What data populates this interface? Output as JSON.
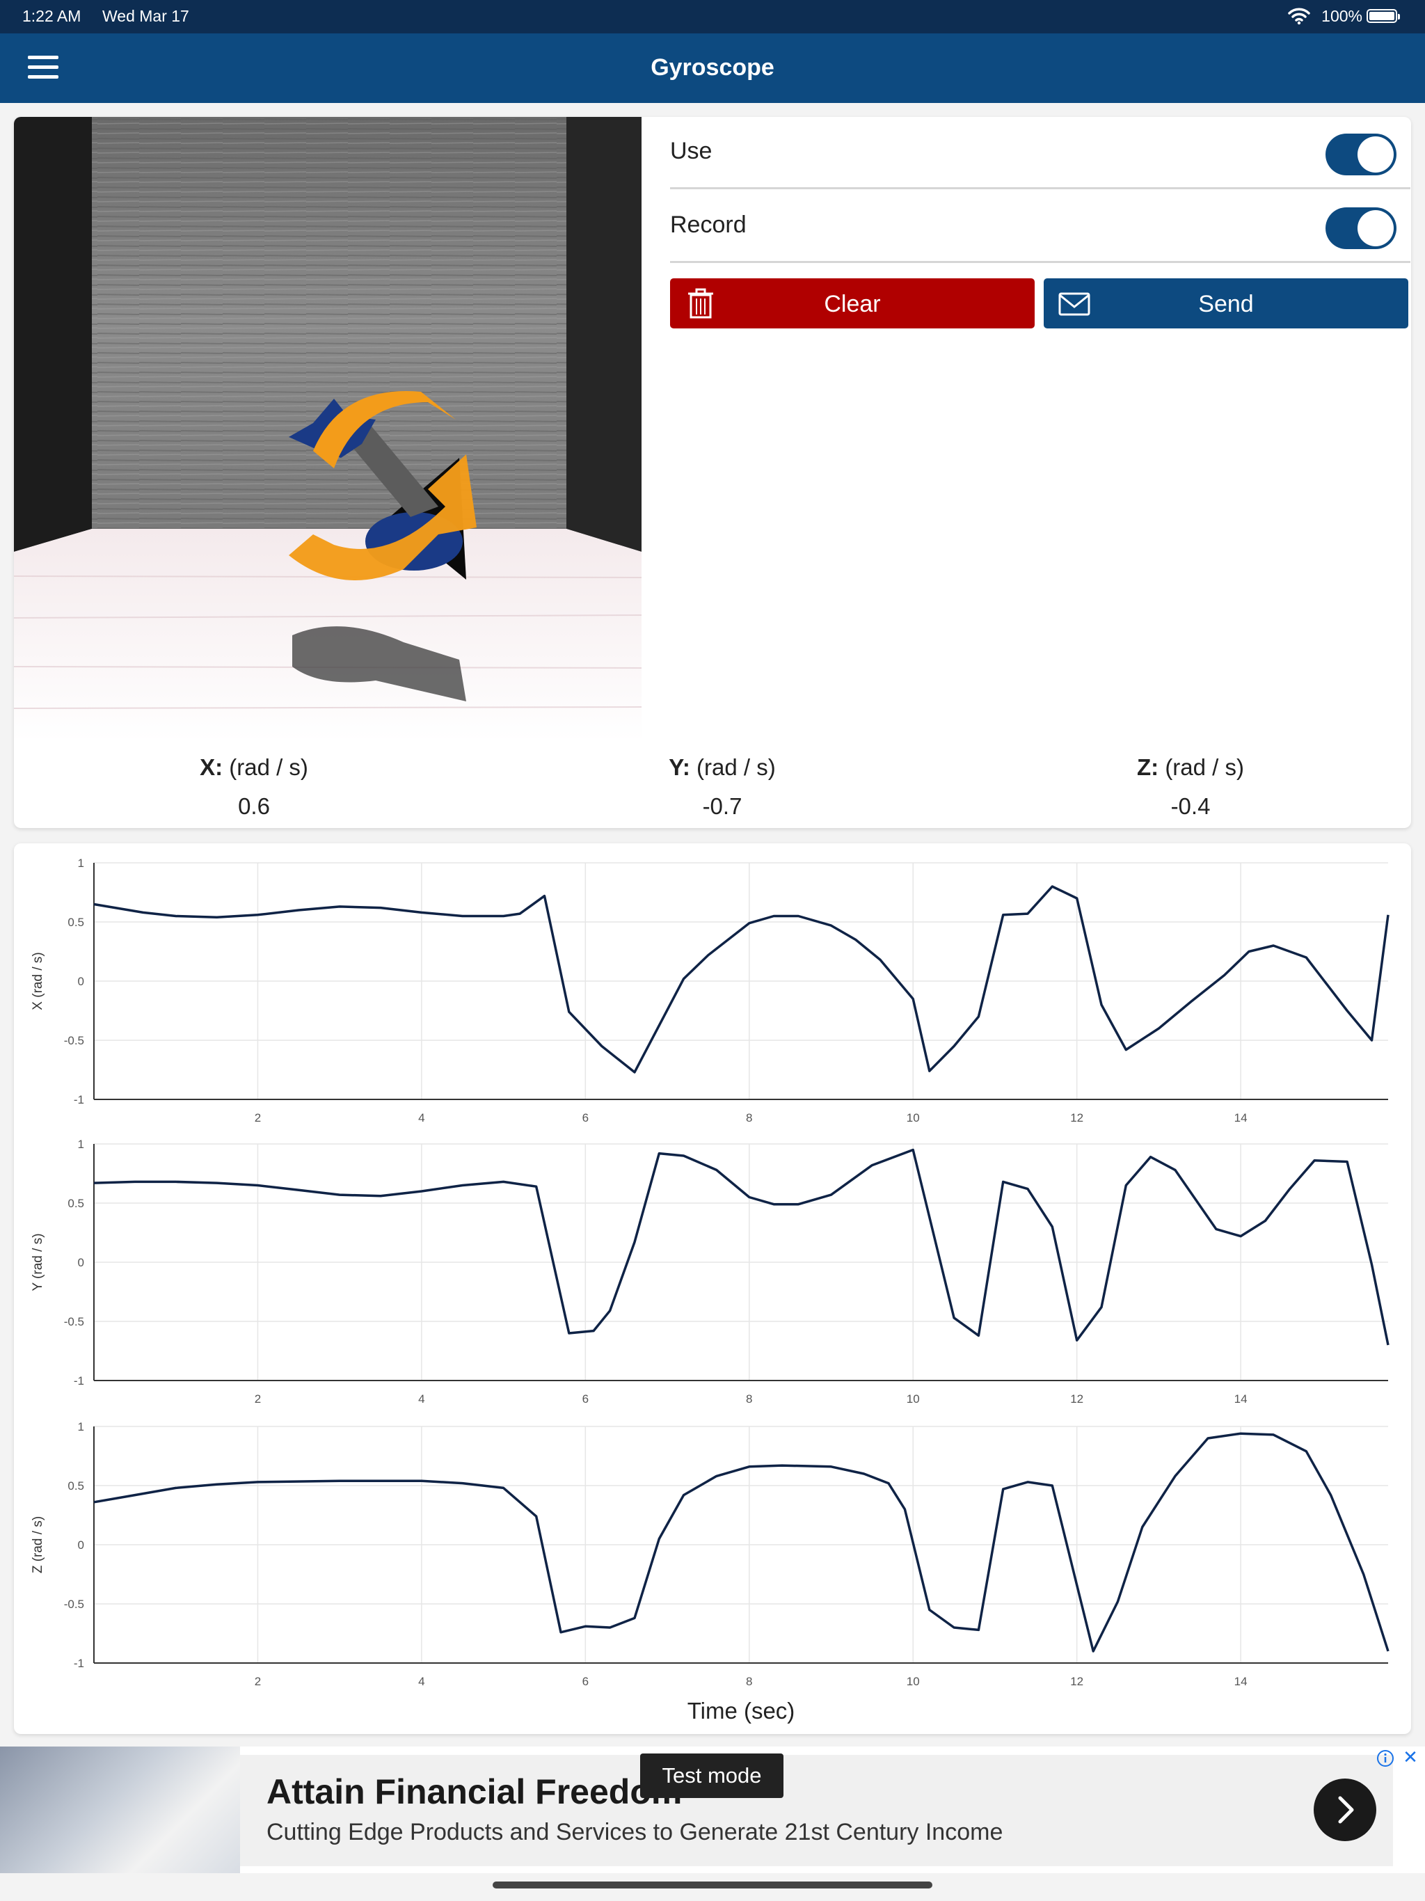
{
  "status_bar": {
    "time": "1:22 AM",
    "date": "Wed Mar 17",
    "battery": "100%"
  },
  "nav": {
    "title": "Gyroscope"
  },
  "controls": {
    "use_label": "Use",
    "use_on": true,
    "record_label": "Record",
    "record_on": true,
    "clear_label": "Clear",
    "send_label": "Send"
  },
  "readouts": [
    {
      "axis": "X:",
      "unit": "(rad / s)",
      "value": "0.6"
    },
    {
      "axis": "Y:",
      "unit": "(rad / s)",
      "value": "-0.7"
    },
    {
      "axis": "Z:",
      "unit": "(rad / s)",
      "value": "-0.4"
    }
  ],
  "colors": {
    "nav": "#0d4a80",
    "status": "#0d2d52",
    "clear": "#b00000",
    "send": "#0d4a80",
    "line": "#0f2346"
  },
  "chart_data": [
    {
      "type": "line",
      "ylabel": "X  (rad / s)",
      "xlabel": "",
      "xlim": [
        0,
        15.8
      ],
      "ylim": [
        -1,
        1
      ],
      "yticks": [
        "1",
        "0.5",
        "0",
        "-0.5",
        "-1"
      ],
      "xticks": [
        "2",
        "4",
        "6",
        "8",
        "10",
        "12",
        "14"
      ],
      "series": [
        {
          "x": [
            0,
            0.6,
            1,
            1.5,
            2,
            2.5,
            3,
            3.5,
            4,
            4.5,
            5,
            5.2,
            5.5,
            5.8,
            6.2,
            6.6,
            7.2,
            7.5,
            8,
            8.3,
            8.6,
            9,
            9.3,
            9.6,
            10,
            10.2,
            10.5,
            10.8,
            11.1,
            11.4,
            11.7,
            12,
            12.3,
            12.6,
            13,
            13.4,
            13.8,
            14.1,
            14.4,
            14.8,
            15.3,
            15.6,
            15.8
          ],
          "y": [
            0.65,
            0.58,
            0.55,
            0.54,
            0.56,
            0.6,
            0.63,
            0.62,
            0.58,
            0.55,
            0.55,
            0.57,
            0.72,
            -0.26,
            -0.55,
            -0.77,
            0.02,
            0.22,
            0.49,
            0.55,
            0.55,
            0.47,
            0.35,
            0.18,
            -0.15,
            -0.76,
            -0.55,
            -0.3,
            0.56,
            0.57,
            0.8,
            0.7,
            -0.2,
            -0.58,
            -0.4,
            -0.17,
            0.05,
            0.25,
            0.3,
            0.2,
            -0.25,
            -0.5,
            0.56
          ]
        }
      ]
    },
    {
      "type": "line",
      "ylabel": "Y  (rad / s)",
      "xlabel": "",
      "xlim": [
        0,
        15.8
      ],
      "ylim": [
        -1,
        1
      ],
      "yticks": [
        "1",
        "0.5",
        "0",
        "-0.5",
        "-1"
      ],
      "xticks": [
        "2",
        "4",
        "6",
        "8",
        "10",
        "12",
        "14"
      ],
      "series": [
        {
          "x": [
            0,
            0.5,
            1,
            1.5,
            2,
            2.5,
            3,
            3.5,
            4,
            4.5,
            5,
            5.4,
            5.8,
            6.1,
            6.3,
            6.6,
            6.9,
            7.2,
            7.6,
            8,
            8.3,
            8.6,
            9,
            9.5,
            10,
            10.5,
            10.8,
            11.1,
            11.4,
            11.7,
            12,
            12.3,
            12.6,
            12.9,
            13.2,
            13.7,
            14,
            14.3,
            14.6,
            14.9,
            15.3,
            15.6,
            15.8
          ],
          "y": [
            0.67,
            0.68,
            0.68,
            0.67,
            0.65,
            0.61,
            0.57,
            0.56,
            0.6,
            0.65,
            0.68,
            0.64,
            -0.6,
            -0.58,
            -0.41,
            0.17,
            0.92,
            0.9,
            0.78,
            0.55,
            0.49,
            0.49,
            0.57,
            0.82,
            0.95,
            -0.47,
            -0.62,
            0.68,
            0.62,
            0.3,
            -0.66,
            -0.38,
            0.65,
            0.89,
            0.78,
            0.28,
            0.22,
            0.35,
            0.62,
            0.86,
            0.85,
            -0.02,
            -0.7
          ]
        }
      ]
    },
    {
      "type": "line",
      "ylabel": "Z  (rad / s)",
      "xlabel": "Time (sec)",
      "xlim": [
        0,
        15.8
      ],
      "ylim": [
        -1,
        1
      ],
      "yticks": [
        "1",
        "0.5",
        "0",
        "-0.5",
        "-1"
      ],
      "xticks": [
        "2",
        "4",
        "6",
        "8",
        "10",
        "12",
        "14"
      ],
      "series": [
        {
          "x": [
            0,
            0.5,
            1,
            1.5,
            2,
            3,
            4,
            4.5,
            5,
            5.4,
            5.7,
            6,
            6.3,
            6.6,
            6.9,
            7.2,
            7.6,
            8,
            8.4,
            9,
            9.4,
            9.7,
            9.9,
            10.2,
            10.5,
            10.8,
            11.1,
            11.4,
            11.7,
            12.2,
            12.5,
            12.8,
            13.2,
            13.6,
            14,
            14.4,
            14.8,
            15.1,
            15.5,
            15.8
          ],
          "y": [
            0.36,
            0.42,
            0.48,
            0.51,
            0.53,
            0.54,
            0.54,
            0.52,
            0.48,
            0.24,
            -0.74,
            -0.69,
            -0.7,
            -0.62,
            0.05,
            0.42,
            0.58,
            0.66,
            0.67,
            0.66,
            0.6,
            0.52,
            0.3,
            -0.55,
            -0.7,
            -0.72,
            0.47,
            0.53,
            0.5,
            -0.9,
            -0.48,
            0.15,
            0.58,
            0.9,
            0.94,
            0.93,
            0.79,
            0.42,
            -0.25,
            -0.9
          ]
        }
      ]
    }
  ],
  "ad": {
    "headline": "Attain Financial Freedom",
    "sub": "Cutting Edge Products and Services to Generate 21st Century Income",
    "test_mode": "Test mode"
  }
}
